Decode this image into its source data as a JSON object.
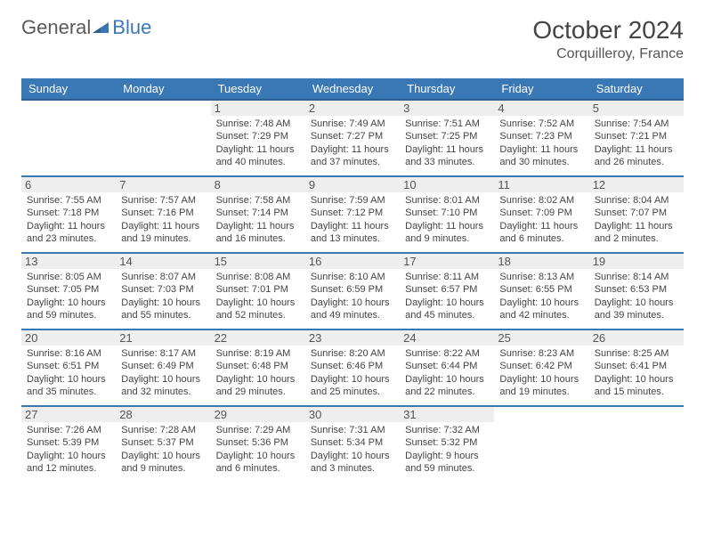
{
  "logo": {
    "part1": "General",
    "part2": "Blue"
  },
  "title": "October 2024",
  "location": "Corquilleroy, France",
  "colors": {
    "header_bg": "#3a78b5",
    "header_border": "#2d5f91",
    "row_border": "#3a78b5",
    "daynum_bg": "#eeeeee",
    "logo_blue": "#3a78b5",
    "logo_gray": "#5a5a5a"
  },
  "weekdays": [
    "Sunday",
    "Monday",
    "Tuesday",
    "Wednesday",
    "Thursday",
    "Friday",
    "Saturday"
  ],
  "weeks": [
    [
      null,
      null,
      {
        "n": "1",
        "sr": "7:48 AM",
        "ss": "7:29 PM",
        "dl": "11 hours and 40 minutes."
      },
      {
        "n": "2",
        "sr": "7:49 AM",
        "ss": "7:27 PM",
        "dl": "11 hours and 37 minutes."
      },
      {
        "n": "3",
        "sr": "7:51 AM",
        "ss": "7:25 PM",
        "dl": "11 hours and 33 minutes."
      },
      {
        "n": "4",
        "sr": "7:52 AM",
        "ss": "7:23 PM",
        "dl": "11 hours and 30 minutes."
      },
      {
        "n": "5",
        "sr": "7:54 AM",
        "ss": "7:21 PM",
        "dl": "11 hours and 26 minutes."
      }
    ],
    [
      {
        "n": "6",
        "sr": "7:55 AM",
        "ss": "7:18 PM",
        "dl": "11 hours and 23 minutes."
      },
      {
        "n": "7",
        "sr": "7:57 AM",
        "ss": "7:16 PM",
        "dl": "11 hours and 19 minutes."
      },
      {
        "n": "8",
        "sr": "7:58 AM",
        "ss": "7:14 PM",
        "dl": "11 hours and 16 minutes."
      },
      {
        "n": "9",
        "sr": "7:59 AM",
        "ss": "7:12 PM",
        "dl": "11 hours and 13 minutes."
      },
      {
        "n": "10",
        "sr": "8:01 AM",
        "ss": "7:10 PM",
        "dl": "11 hours and 9 minutes."
      },
      {
        "n": "11",
        "sr": "8:02 AM",
        "ss": "7:09 PM",
        "dl": "11 hours and 6 minutes."
      },
      {
        "n": "12",
        "sr": "8:04 AM",
        "ss": "7:07 PM",
        "dl": "11 hours and 2 minutes."
      }
    ],
    [
      {
        "n": "13",
        "sr": "8:05 AM",
        "ss": "7:05 PM",
        "dl": "10 hours and 59 minutes."
      },
      {
        "n": "14",
        "sr": "8:07 AM",
        "ss": "7:03 PM",
        "dl": "10 hours and 55 minutes."
      },
      {
        "n": "15",
        "sr": "8:08 AM",
        "ss": "7:01 PM",
        "dl": "10 hours and 52 minutes."
      },
      {
        "n": "16",
        "sr": "8:10 AM",
        "ss": "6:59 PM",
        "dl": "10 hours and 49 minutes."
      },
      {
        "n": "17",
        "sr": "8:11 AM",
        "ss": "6:57 PM",
        "dl": "10 hours and 45 minutes."
      },
      {
        "n": "18",
        "sr": "8:13 AM",
        "ss": "6:55 PM",
        "dl": "10 hours and 42 minutes."
      },
      {
        "n": "19",
        "sr": "8:14 AM",
        "ss": "6:53 PM",
        "dl": "10 hours and 39 minutes."
      }
    ],
    [
      {
        "n": "20",
        "sr": "8:16 AM",
        "ss": "6:51 PM",
        "dl": "10 hours and 35 minutes."
      },
      {
        "n": "21",
        "sr": "8:17 AM",
        "ss": "6:49 PM",
        "dl": "10 hours and 32 minutes."
      },
      {
        "n": "22",
        "sr": "8:19 AM",
        "ss": "6:48 PM",
        "dl": "10 hours and 29 minutes."
      },
      {
        "n": "23",
        "sr": "8:20 AM",
        "ss": "6:46 PM",
        "dl": "10 hours and 25 minutes."
      },
      {
        "n": "24",
        "sr": "8:22 AM",
        "ss": "6:44 PM",
        "dl": "10 hours and 22 minutes."
      },
      {
        "n": "25",
        "sr": "8:23 AM",
        "ss": "6:42 PM",
        "dl": "10 hours and 19 minutes."
      },
      {
        "n": "26",
        "sr": "8:25 AM",
        "ss": "6:41 PM",
        "dl": "10 hours and 15 minutes."
      }
    ],
    [
      {
        "n": "27",
        "sr": "7:26 AM",
        "ss": "5:39 PM",
        "dl": "10 hours and 12 minutes."
      },
      {
        "n": "28",
        "sr": "7:28 AM",
        "ss": "5:37 PM",
        "dl": "10 hours and 9 minutes."
      },
      {
        "n": "29",
        "sr": "7:29 AM",
        "ss": "5:36 PM",
        "dl": "10 hours and 6 minutes."
      },
      {
        "n": "30",
        "sr": "7:31 AM",
        "ss": "5:34 PM",
        "dl": "10 hours and 3 minutes."
      },
      {
        "n": "31",
        "sr": "7:32 AM",
        "ss": "5:32 PM",
        "dl": "9 hours and 59 minutes."
      },
      null,
      null
    ]
  ],
  "labels": {
    "sunrise": "Sunrise: ",
    "sunset": "Sunset: ",
    "daylight": "Daylight: "
  }
}
